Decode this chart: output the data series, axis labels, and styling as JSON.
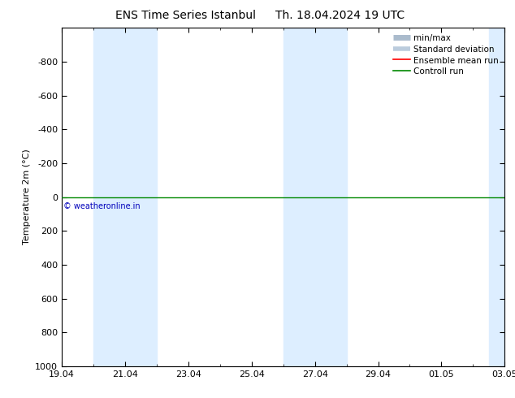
{
  "title_left": "ENS Time Series Istanbul",
  "title_right": "Th. 18.04.2024 19 UTC",
  "ylabel": "Temperature 2m (°C)",
  "ylim_bottom": -1000,
  "ylim_top": 1000,
  "yticks": [
    -800,
    -600,
    -400,
    -200,
    0,
    200,
    400,
    600,
    800,
    1000
  ],
  "xtick_labels": [
    "19.04",
    "21.04",
    "23.04",
    "25.04",
    "27.04",
    "29.04",
    "01.05",
    "03.05"
  ],
  "xtick_positions": [
    0,
    2,
    4,
    6,
    8,
    10,
    12,
    14
  ],
  "blue_bands": [
    [
      1.0,
      2.0
    ],
    [
      2.0,
      3.0
    ],
    [
      7.0,
      8.0
    ],
    [
      8.0,
      9.0
    ],
    [
      13.5,
      14.0
    ]
  ],
  "band_color": "#ddeeff",
  "control_run_color": "#008800",
  "ensemble_mean_color": "#ff0000",
  "background_color": "#ffffff",
  "min_max_color": "#aabbcc",
  "std_dev_color": "#bbccdd",
  "copyright_text": "© weatheronline.in",
  "copyright_color": "#0000bb",
  "legend_items": [
    "min/max",
    "Standard deviation",
    "Ensemble mean run",
    "Controll run"
  ],
  "title_fontsize": 10,
  "axis_fontsize": 8,
  "tick_fontsize": 8
}
